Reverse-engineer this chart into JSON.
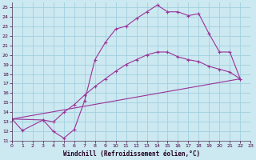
{
  "xlabel": "Windchill (Refroidissement éolien,°C)",
  "background_color": "#cce8f0",
  "grid_color": "#99ccdd",
  "line_color": "#993399",
  "xlim": [
    0,
    23
  ],
  "ylim": [
    11,
    25.5
  ],
  "xticks": [
    0,
    1,
    2,
    3,
    4,
    5,
    6,
    7,
    8,
    9,
    10,
    11,
    12,
    13,
    14,
    15,
    16,
    17,
    18,
    19,
    20,
    21,
    22,
    23
  ],
  "yticks": [
    11,
    12,
    13,
    14,
    15,
    16,
    17,
    18,
    19,
    20,
    21,
    22,
    23,
    24,
    25
  ],
  "line1_x": [
    0,
    1,
    3,
    4,
    5,
    6,
    7,
    8,
    9,
    10,
    11,
    12,
    13,
    14,
    15,
    16,
    17,
    18,
    19,
    20,
    21,
    22
  ],
  "line1_y": [
    13.3,
    12.1,
    13.2,
    12.0,
    11.3,
    12.2,
    15.2,
    19.5,
    21.3,
    22.7,
    23.0,
    23.8,
    24.5,
    25.2,
    24.5,
    24.5,
    24.1,
    24.3,
    22.2,
    20.3,
    20.3,
    17.5
  ],
  "line2_x": [
    0,
    22
  ],
  "line2_y": [
    13.3,
    17.5
  ],
  "line3_x": [
    0,
    3,
    4,
    5,
    6,
    7,
    8,
    9,
    10,
    11,
    12,
    13,
    14,
    15,
    16,
    17,
    18,
    19,
    20,
    21,
    22
  ],
  "line3_y": [
    13.3,
    13.2,
    13.0,
    14.0,
    14.8,
    15.8,
    16.7,
    17.5,
    18.3,
    19.0,
    19.5,
    20.0,
    20.3,
    20.3,
    19.8,
    19.5,
    19.3,
    18.8,
    18.5,
    18.2,
    17.5
  ]
}
